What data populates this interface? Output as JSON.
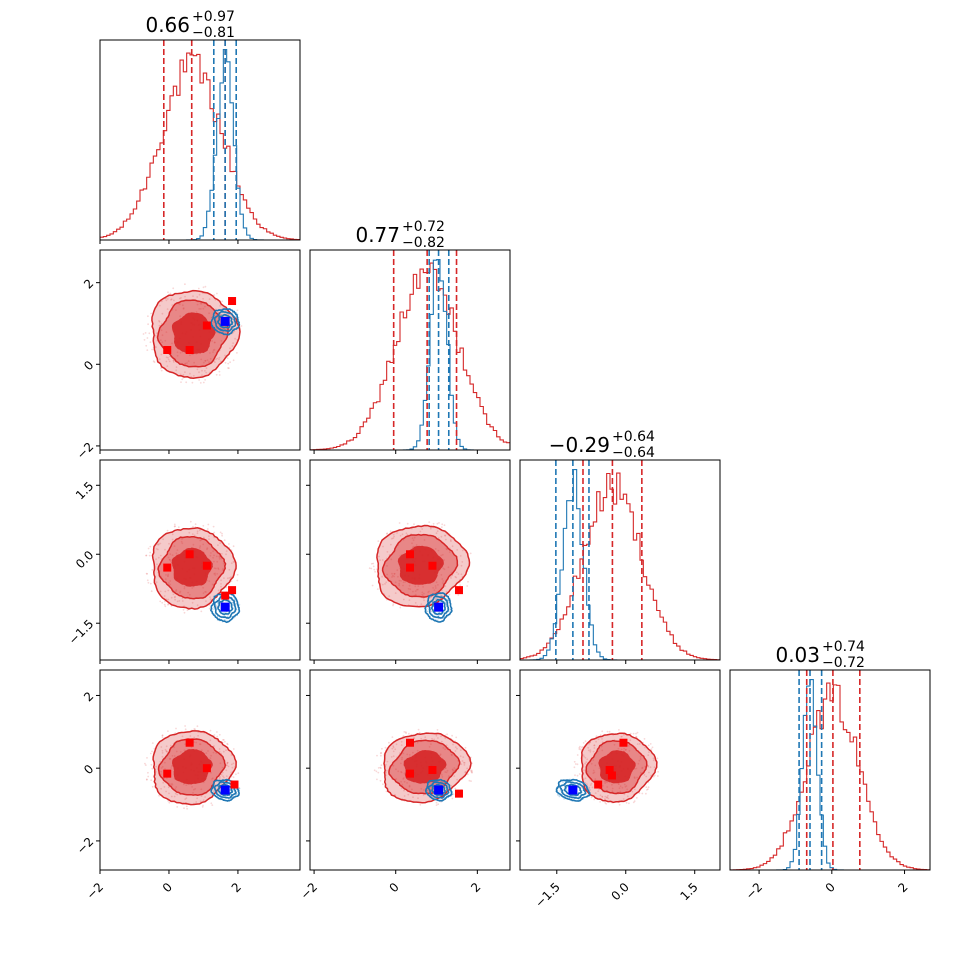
{
  "chart_data": {
    "type": "corner",
    "colors": {
      "primary": "#d62728",
      "secondary": "#1f77b4",
      "marker_primary": "#ff0000",
      "marker_secondary": "#0000ff"
    },
    "parameters": [
      {
        "index": 0,
        "range": [
          -2,
          3.8
        ],
        "ticks": [
          -2,
          0,
          2
        ],
        "tick_labels": [
          "−2",
          "0",
          "2"
        ],
        "title": {
          "value": "0.66",
          "plus": "+0.97",
          "minus": "−0.81"
        },
        "primary_quantiles": [
          -0.15,
          0.66,
          1.63
        ],
        "secondary_quantiles": [
          1.3,
          1.63,
          1.95
        ],
        "primary_hist": {
          "mean": 0.66,
          "sd": 0.9
        },
        "secondary_hist": {
          "mean": 1.63,
          "sd": 0.25
        }
      },
      {
        "index": 1,
        "range": [
          -2.1,
          2.8
        ],
        "ticks": [
          -2,
          0,
          2
        ],
        "tick_labels": [
          "−2",
          "0",
          "2"
        ],
        "title": {
          "value": "0.77",
          "plus": "+0.72",
          "minus": "−0.82"
        },
        "primary_quantiles": [
          -0.05,
          0.77,
          1.49
        ],
        "secondary_quantiles": [
          0.82,
          1.05,
          1.3
        ],
        "primary_hist": {
          "mean": 0.77,
          "sd": 0.78
        },
        "secondary_hist": {
          "mean": 1.05,
          "sd": 0.2
        }
      },
      {
        "index": 2,
        "range": [
          -2.3,
          2.05
        ],
        "ticks": [
          -1.5,
          0.0,
          1.5
        ],
        "tick_labels": [
          "−1.5",
          "0.0",
          "1.5"
        ],
        "title": {
          "value": "−0.29",
          "plus": "+0.64",
          "minus": "−0.64"
        },
        "primary_quantiles": [
          -0.93,
          -0.29,
          0.35
        ],
        "secondary_quantiles": [
          -1.52,
          -1.15,
          -0.8
        ],
        "primary_hist": {
          "mean": -0.29,
          "sd": 0.64
        },
        "secondary_hist": {
          "mean": -1.15,
          "sd": 0.22
        }
      },
      {
        "index": 3,
        "range": [
          -2.8,
          2.7
        ],
        "ticks": [
          -2,
          0,
          2
        ],
        "tick_labels": [
          "−2",
          "0",
          "2"
        ],
        "title": {
          "value": "0.03",
          "plus": "+0.74",
          "minus": "−0.72"
        },
        "primary_quantiles": [
          -0.69,
          0.03,
          0.77
        ],
        "secondary_quantiles": [
          -0.9,
          -0.6,
          -0.28
        ],
        "primary_hist": {
          "mean": 0.03,
          "sd": 0.73
        },
        "secondary_hist": {
          "mean": -0.6,
          "sd": 0.2
        }
      }
    ],
    "pairs": [
      {
        "row": 1,
        "col": 0,
        "primary_center": [
          0.7,
          0.75
        ],
        "primary_spread": [
          1.0,
          0.85
        ],
        "secondary_center": [
          1.63,
          1.05
        ],
        "secondary_spread": [
          0.28,
          0.22
        ],
        "primary_markers": [
          [
            -0.05,
            0.35
          ],
          [
            0.6,
            0.35
          ],
          [
            1.1,
            0.95
          ],
          [
            1.83,
            1.55
          ],
          [
            1.63,
            1.05
          ]
        ],
        "secondary_marker": [
          1.63,
          1.05
        ]
      },
      {
        "row": 2,
        "col": 0,
        "primary_center": [
          0.66,
          -0.29
        ],
        "primary_spread": [
          0.95,
          0.7
        ],
        "secondary_center": [
          1.63,
          -1.15
        ],
        "secondary_spread": [
          0.28,
          0.22
        ],
        "primary_markers": [
          [
            -0.05,
            -0.29
          ],
          [
            0.6,
            0.0
          ],
          [
            1.1,
            -0.25
          ],
          [
            1.83,
            -0.78
          ],
          [
            1.63,
            -0.9
          ]
        ],
        "secondary_marker": [
          1.63,
          -1.15
        ]
      },
      {
        "row": 2,
        "col": 1,
        "primary_center": [
          0.6,
          -0.25
        ],
        "primary_spread": [
          0.9,
          0.7
        ],
        "secondary_center": [
          1.05,
          -1.15
        ],
        "secondary_spread": [
          0.22,
          0.22
        ],
        "primary_markers": [
          [
            0.35,
            0.0
          ],
          [
            0.35,
            -0.29
          ],
          [
            0.9,
            -0.25
          ],
          [
            1.55,
            -0.78
          ]
        ],
        "secondary_marker": [
          1.05,
          -1.15
        ]
      },
      {
        "row": 3,
        "col": 0,
        "primary_center": [
          0.66,
          0.03
        ],
        "primary_spread": [
          0.95,
          0.8
        ],
        "secondary_center": [
          1.63,
          -0.6
        ],
        "secondary_spread": [
          0.28,
          0.2
        ],
        "primary_markers": [
          [
            -0.05,
            -0.15
          ],
          [
            0.6,
            0.7
          ],
          [
            1.1,
            0.0
          ],
          [
            1.63,
            -0.6
          ],
          [
            1.9,
            -0.45
          ]
        ],
        "secondary_marker": [
          1.63,
          -0.6
        ]
      },
      {
        "row": 3,
        "col": 1,
        "primary_center": [
          0.7,
          0.03
        ],
        "primary_spread": [
          0.85,
          0.75
        ],
        "secondary_center": [
          1.05,
          -0.6
        ],
        "secondary_spread": [
          0.22,
          0.2
        ],
        "primary_markers": [
          [
            0.35,
            0.7
          ],
          [
            0.35,
            -0.15
          ],
          [
            0.9,
            -0.05
          ],
          [
            1.55,
            -0.7
          ]
        ],
        "secondary_marker": [
          1.05,
          -0.6
        ]
      },
      {
        "row": 3,
        "col": 2,
        "primary_center": [
          -0.2,
          0.03
        ],
        "primary_spread": [
          0.65,
          0.75
        ],
        "secondary_center": [
          -1.15,
          -0.6
        ],
        "secondary_spread": [
          0.25,
          0.2
        ],
        "primary_markers": [
          [
            -0.05,
            0.7
          ],
          [
            -0.35,
            -0.05
          ],
          [
            -0.6,
            -0.45
          ],
          [
            -0.3,
            -0.2
          ]
        ],
        "secondary_marker": [
          -1.15,
          -0.6
        ]
      }
    ]
  }
}
